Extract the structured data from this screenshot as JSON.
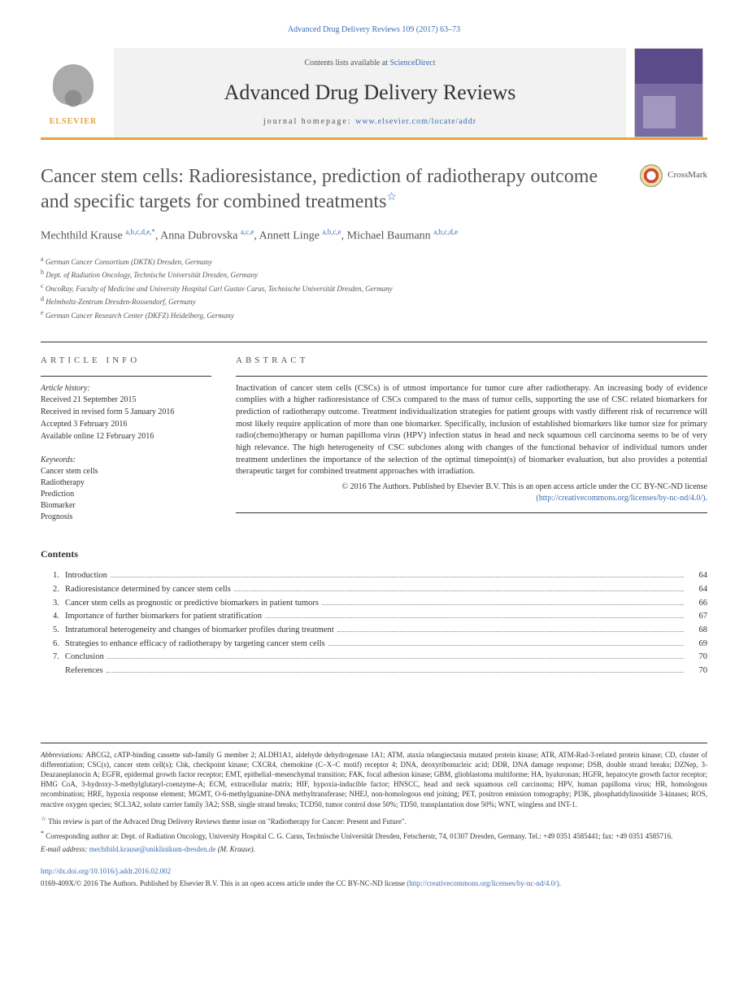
{
  "headerRef": "Advanced Drug Delivery Reviews 109 (2017) 63–73",
  "banner": {
    "contentsPrefix": "Contents lists available at ",
    "contentsLink": "ScienceDirect",
    "journalName": "Advanced Drug Delivery Reviews",
    "homepagePrefix": "journal homepage: ",
    "homepageLink": "www.elsevier.com/locate/addr",
    "publisher": "ELSEVIER"
  },
  "title": "Cancer stem cells: Radioresistance, prediction of radiotherapy outcome and specific targets for combined treatments",
  "crossmark": "CrossMark",
  "authors": [
    {
      "name": "Mechthild Krause ",
      "aff": "a,b,c,d,e,",
      "corr": "*"
    },
    {
      "name": ", Anna Dubrovska ",
      "aff": "a,c,e"
    },
    {
      "name": ", Annett Linge ",
      "aff": "a,b,c,e"
    },
    {
      "name": ", Michael Baumann ",
      "aff": "a,b,c,d,e"
    }
  ],
  "affiliations": [
    {
      "sup": "a",
      "text": " German Cancer Consortium (DKTK) Dresden, Germany"
    },
    {
      "sup": "b",
      "text": " Dept. of Radiation Oncology, Technische Universität Dresden, Germany"
    },
    {
      "sup": "c",
      "text": " OncoRay, Faculty of Medicine and University Hospital Carl Gustav Carus, Technische Universität Dresden, Germany"
    },
    {
      "sup": "d",
      "text": " Helmholtz-Zentrum Dresden-Rossendorf, Germany"
    },
    {
      "sup": "e",
      "text": " German Cancer Research Center (DKFZ) Heidelberg, Germany"
    }
  ],
  "info": {
    "heading": "ARTICLE INFO",
    "histLabel": "Article history:",
    "hist": [
      "Received 21 September 2015",
      "Received in revised form 5 January 2016",
      "Accepted 3 February 2016",
      "Available online 12 February 2016"
    ],
    "kwLabel": "Keywords:",
    "keywords": [
      "Cancer stem cells",
      "Radiotherapy",
      "Prediction",
      "Biomarker",
      "Prognosis"
    ]
  },
  "abstract": {
    "heading": "ABSTRACT",
    "text": "Inactivation of cancer stem cells (CSCs) is of utmost importance for tumor cure after radiotherapy. An increasing body of evidence complies with a higher radioresistance of CSCs compared to the mass of tumor cells, supporting the use of CSC related biomarkers for prediction of radiotherapy outcome. Treatment individualization strategies for patient groups with vastly different risk of recurrence will most likely require application of more than one biomarker. Specifically, inclusion of established biomarkers like tumor size for primary radio(chemo)therapy or human papilloma virus (HPV) infection status in head and neck squamous cell carcinoma seems to be of very high relevance. The high heterogeneity of CSC subclones along with changes of the functional behavior of individual tumors under treatment underlines the importance of the selection of the optimal timepoint(s) of biomarker evaluation, but also provides a potential therapeutic target for combined treatment approaches with irradiation.",
    "cpPrefix": "© 2016 The Authors. Published by Elsevier B.V. This is an open access article under the CC BY-NC-ND license",
    "cpLink": "(http://creativecommons.org/licenses/by-nc-nd/4.0/)"
  },
  "contents": {
    "title": "Contents",
    "items": [
      {
        "num": "1.",
        "label": "Introduction",
        "page": "64"
      },
      {
        "num": "2.",
        "label": "Radioresistance determined by cancer stem cells",
        "page": "64"
      },
      {
        "num": "3.",
        "label": "Cancer stem cells as prognostic or predictive biomarkers in patient tumors",
        "page": "66"
      },
      {
        "num": "4.",
        "label": "Importance of further biomarkers for patient stratification",
        "page": "67"
      },
      {
        "num": "5.",
        "label": "Intratumoral heterogeneity and changes of biomarker profiles during treatment",
        "page": "68"
      },
      {
        "num": "6.",
        "label": "Strategies to enhance efficacy of radiotherapy by targeting cancer stem cells",
        "page": "69"
      },
      {
        "num": "7.",
        "label": "Conclusion",
        "page": "70"
      },
      {
        "num": "",
        "label": "References",
        "page": "70"
      }
    ]
  },
  "footer": {
    "abbrLabel": "Abbreviations:",
    "abbrText": " ABCG2, cATP-binding cassette sub-family G member 2; ALDH1A1, aldehyde dehydrogenase 1A1; ATM, ataxia telangiectasia mutated protein kinase; ATR, ATM-Rad-3-related protein kinase; CD, cluster of differentiation; CSC(s), cancer stem cell(s); Chk, checkpoint kinase; CXCR4, chemokine (C–X–C motif) receptor 4; DNA, deoxyribonucleic acid; DDR, DNA damage response; DSB, double strand breaks; DZNep, 3-Deazaneplanocin A; EGFR, epidermal growth factor receptor; EMT, epithelial–mesenchymal transition; FAK, focal adhesion kinase; GBM, glioblastoma multiforme; HA, hyaluronan; HGFR, hepatocyte growth factor receptor; HMG CoA, 3-hydroxy-3-methylglutaryl-coenzyme-A; ECM, extracellular matrix; HIF, hypoxia-inducible factor; HNSCC, head and neck squamous cell carcinoma; HPV, human papilloma virus; HR, homologous recombination; HRE, hypoxia response element; MGMT, O-6-methylguanine-DNA methyltransferase; NHEJ, non-homologous end joining; PET, positron emission tomography; PI3K, phosphatidylinositide 3-kinases; ROS, reactive oxygen species; SCL3A2, solute carrier family 3A2; SSB, single strand breaks; TCD50, tumor control dose 50%; TD50, transplantation dose 50%; WNT, wingless and INT-1.",
    "note1": " This review is part of the Advaced Drug Delivery Reviews theme issue on \"Radiotherapy for Cancer: Present and Future\".",
    "note2": " Corresponding author at: Dept. of Radiation Oncology, University Hospital C. G. Carus, Technische Universität Dresden, Fetscherstr, 74, 01307 Dresden, Germany. Tel.: +49 0351 4585441; fax: +49 0351 4585716.",
    "emailLabel": "E-mail address: ",
    "email": "mechthild.krause@uniklinikum-dresden.de",
    "emailSuffix": " (M. Krause).",
    "doi": "http://dx.doi.org/10.1016/j.addr.2016.02.002",
    "cpPrefix": "0169-409X/© 2016 The Authors. Published by Elsevier B.V. This is an open access article under the CC BY-NC-ND license ",
    "cpLink": "(http://creativecommons.org/licenses/by-nc-nd/4.0/)"
  }
}
